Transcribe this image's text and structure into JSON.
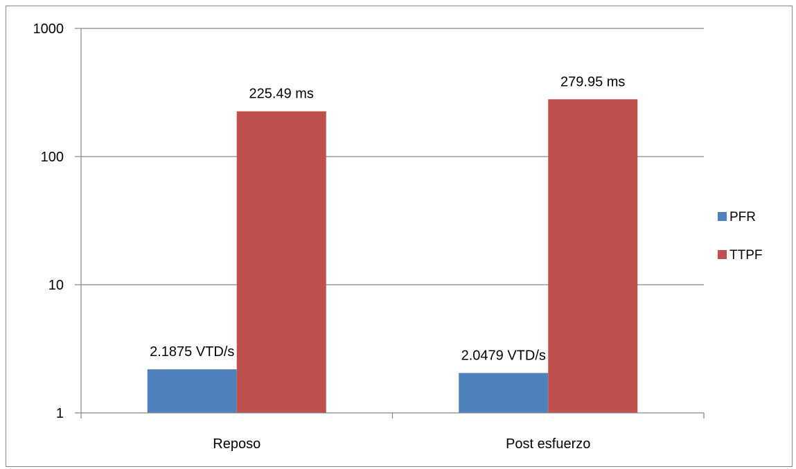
{
  "chart_data": {
    "type": "bar",
    "title": "",
    "xlabel": "",
    "ylabel": "",
    "yscale": "log",
    "ylim": [
      1,
      1000
    ],
    "yticks": [
      1,
      10,
      100,
      1000
    ],
    "ytick_labels": [
      "1",
      "10",
      "100",
      "1000"
    ],
    "categories": [
      "Reposo",
      "Post esfuerzo"
    ],
    "grid": "horizontal major gridlines",
    "legend_position": "right",
    "series": [
      {
        "name": "PFR",
        "color": "#4F81BD",
        "values": [
          2.1875,
          2.0479
        ],
        "data_labels": [
          "2.1875 VTD/s",
          "2.0479 VTD/s"
        ]
      },
      {
        "name": "TTPF",
        "color": "#C0504D",
        "values": [
          225.49,
          279.95
        ],
        "data_labels": [
          "225.49 ms",
          "279.95 ms"
        ]
      }
    ]
  }
}
